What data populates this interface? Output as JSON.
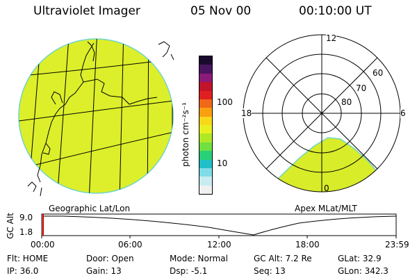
{
  "header": {
    "instrument": "Ultraviolet Imager",
    "date": "05 Nov 00",
    "time": "00:10:00 UT"
  },
  "colors": {
    "fill_map": "#dcef2a",
    "edge": "#6fd4c9",
    "mlt_fill": "#d8ec2a"
  },
  "colorbar": {
    "unit": "photon cm⁻²s⁻¹",
    "tick_100": "100",
    "tick_10": "10",
    "colors": [
      "#1b0a2e",
      "#4a1560",
      "#8c1a78",
      "#c1142a",
      "#e02020",
      "#f06818",
      "#f8a010",
      "#f8d818",
      "#e8f020",
      "#b0e828",
      "#70e040",
      "#28d078",
      "#20c0c8",
      "#80dce8",
      "#c8ecf0",
      "#f0f0f0"
    ]
  },
  "geo_panel": {
    "label": "Geographic Lat/Lon"
  },
  "polar_panel": {
    "label": "Apex MLat/MLT",
    "mlt_top": "12",
    "mlt_left": "18",
    "mlt_right": "6",
    "mlt_bottom": "0",
    "lat_60": "60",
    "lat_70": "70",
    "lat_80": "80"
  },
  "altitude_plot": {
    "ylabel": "GC Alt",
    "ytick_high": "9.0",
    "ytick_low": "1.8",
    "xticks": [
      "00:00",
      "06:00",
      "12:00",
      "18:00",
      "23:59"
    ]
  },
  "info": {
    "flt": "Flt: HOME",
    "door": "Door: Open",
    "mode": "Mode: Normal",
    "gc_alt": "GC Alt: 7.2 Re",
    "glat": "GLat:  32.9",
    "ip": "IP: 36.0",
    "gain": "Gain: 13",
    "dsp": "Dsp:   -5.1",
    "seq": "Seq: 13",
    "glon": "GLon: 342.3"
  }
}
